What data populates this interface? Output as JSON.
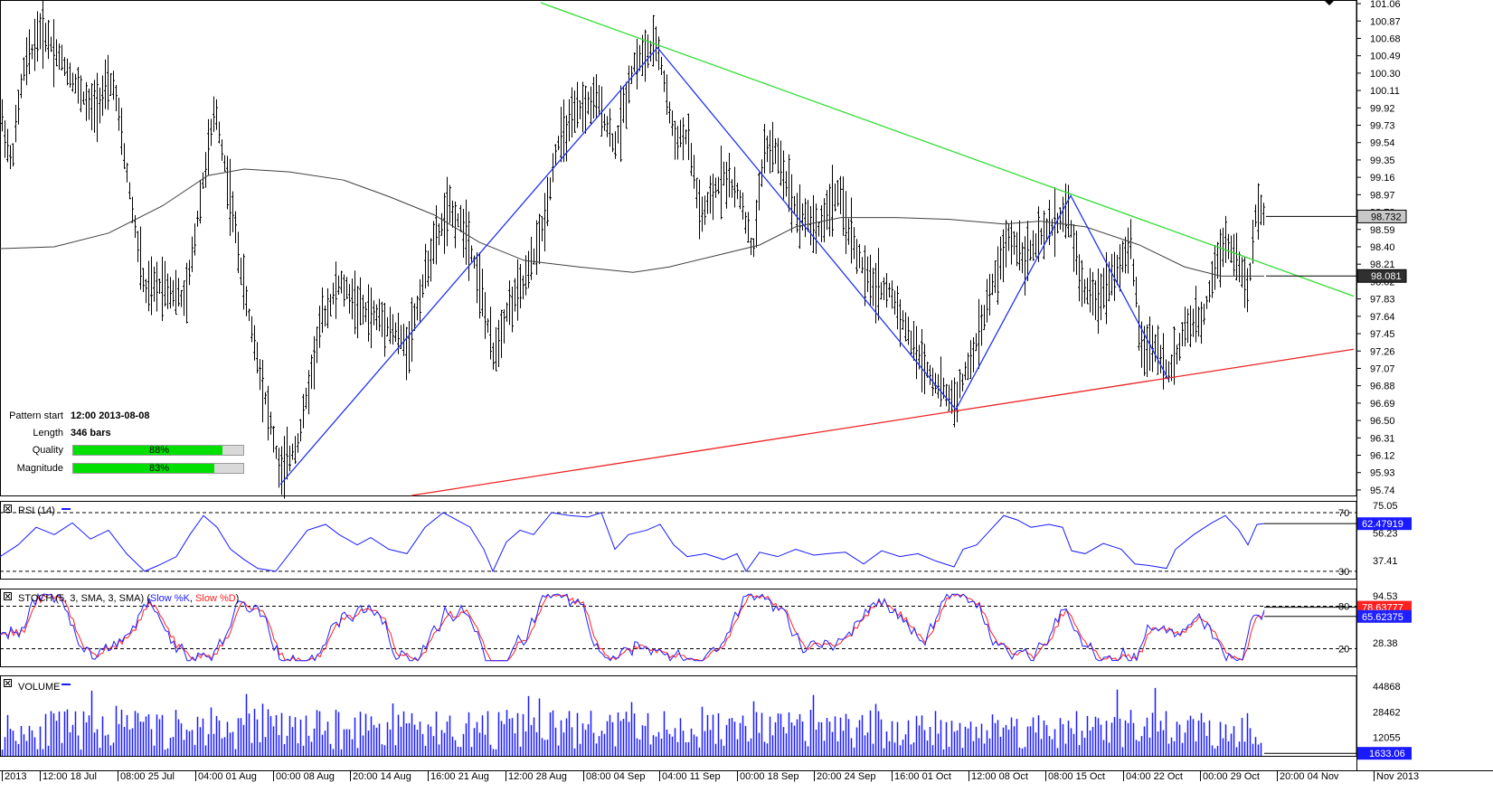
{
  "chart_data": {
    "type": "candlestick",
    "main_pane": {
      "y_ticks": [
        "101.06",
        "100.87",
        "100.68",
        "100.49",
        "100.30",
        "100.11",
        "99.92",
        "99.73",
        "99.54",
        "99.35",
        "99.16",
        "98.97",
        "98.78",
        "98.59",
        "98.40",
        "98.21",
        "98.02",
        "97.83",
        "97.64",
        "97.45",
        "97.26",
        "97.07",
        "96.88",
        "96.69",
        "96.50",
        "96.31",
        "96.12",
        "95.93",
        "95.74"
      ],
      "last_price_label": "98.732",
      "ma_label": "98.081",
      "price_range": [
        95.68,
        101.1
      ],
      "price_path": [
        [
          0,
          99.9
        ],
        [
          12,
          99.3
        ],
        [
          25,
          100.3
        ],
        [
          45,
          100.8
        ],
        [
          70,
          100.4
        ],
        [
          100,
          99.9
        ],
        [
          125,
          100.2
        ],
        [
          140,
          99.2
        ],
        [
          160,
          97.9
        ],
        [
          180,
          98.0
        ],
        [
          205,
          97.8
        ],
        [
          222,
          99.0
        ],
        [
          238,
          99.9
        ],
        [
          255,
          98.9
        ],
        [
          270,
          97.9
        ],
        [
          290,
          96.9
        ],
        [
          310,
          95.9
        ],
        [
          330,
          96.3
        ],
        [
          355,
          97.6
        ],
        [
          375,
          98.0
        ],
        [
          400,
          97.7
        ],
        [
          425,
          97.6
        ],
        [
          450,
          97.3
        ],
        [
          475,
          98.3
        ],
        [
          495,
          98.8
        ],
        [
          515,
          98.6
        ],
        [
          530,
          98.0
        ],
        [
          545,
          97.2
        ],
        [
          560,
          97.7
        ],
        [
          580,
          98.0
        ],
        [
          600,
          98.6
        ],
        [
          615,
          99.5
        ],
        [
          640,
          99.9
        ],
        [
          660,
          100.0
        ],
        [
          680,
          99.5
        ],
        [
          700,
          100.4
        ],
        [
          727,
          100.6
        ],
        [
          745,
          99.6
        ],
        [
          760,
          99.6
        ],
        [
          775,
          98.7
        ],
        [
          800,
          99.2
        ],
        [
          820,
          98.9
        ],
        [
          832,
          98.3
        ],
        [
          845,
          99.5
        ],
        [
          860,
          99.4
        ],
        [
          880,
          98.8
        ],
        [
          905,
          98.6
        ],
        [
          925,
          99.0
        ],
        [
          945,
          98.4
        ],
        [
          960,
          98.0
        ],
        [
          985,
          97.9
        ],
        [
          1010,
          97.3
        ],
        [
          1035,
          96.9
        ],
        [
          1055,
          96.7
        ],
        [
          1075,
          97.2
        ],
        [
          1095,
          97.9
        ],
        [
          1115,
          98.5
        ],
        [
          1135,
          98.3
        ],
        [
          1160,
          98.6
        ],
        [
          1180,
          98.8
        ],
        [
          1195,
          98.0
        ],
        [
          1210,
          97.8
        ],
        [
          1230,
          98.1
        ],
        [
          1250,
          98.4
        ],
        [
          1262,
          97.3
        ],
        [
          1280,
          97.3
        ],
        [
          1292,
          97.0
        ],
        [
          1310,
          97.5
        ],
        [
          1330,
          97.6
        ],
        [
          1340,
          98.1
        ],
        [
          1355,
          98.5
        ],
        [
          1370,
          98.2
        ],
        [
          1380,
          97.9
        ],
        [
          1390,
          98.9
        ],
        [
          1398,
          98.73
        ]
      ],
      "ma_path": [
        [
          0,
          98.38
        ],
        [
          60,
          98.4
        ],
        [
          120,
          98.55
        ],
        [
          180,
          98.85
        ],
        [
          230,
          99.18
        ],
        [
          270,
          99.25
        ],
        [
          320,
          99.22
        ],
        [
          380,
          99.13
        ],
        [
          430,
          98.95
        ],
        [
          480,
          98.75
        ],
        [
          530,
          98.45
        ],
        [
          580,
          98.25
        ],
        [
          640,
          98.18
        ],
        [
          700,
          98.12
        ],
        [
          740,
          98.18
        ],
        [
          790,
          98.3
        ],
        [
          840,
          98.42
        ],
        [
          880,
          98.62
        ],
        [
          930,
          98.72
        ],
        [
          990,
          98.72
        ],
        [
          1050,
          98.7
        ],
        [
          1110,
          98.65
        ],
        [
          1150,
          98.68
        ],
        [
          1200,
          98.62
        ],
        [
          1260,
          98.42
        ],
        [
          1310,
          98.18
        ],
        [
          1350,
          98.08
        ],
        [
          1398,
          98.08
        ]
      ],
      "pattern_lines": {
        "upper_trend": [
          [
            598,
            101.07
          ],
          [
            1497,
            97.86
          ]
        ],
        "lower_trend": [
          [
            455,
            95.68
          ],
          [
            1497,
            97.28
          ]
        ],
        "zigzag": [
          [
            310,
            95.8
          ],
          [
            727,
            100.58
          ],
          [
            1057,
            96.62
          ],
          [
            1184,
            98.96
          ],
          [
            1292,
            96.95
          ]
        ]
      }
    },
    "pattern_info": {
      "start_label": "Pattern start",
      "start_value": "12:00 2013-08-08",
      "length_label": "Length",
      "length_value": "346 bars",
      "quality_label": "Quality",
      "quality_value": "88%",
      "quality_fraction": 0.88,
      "magnitude_label": "Magnitude",
      "magnitude_value": "83%",
      "magnitude_fraction": 0.83
    },
    "rsi_pane": {
      "title": "RSI (14)",
      "levels": [
        "70",
        "30"
      ],
      "y_ticks": [
        "75.05",
        "56.23",
        "37.41"
      ],
      "value_label": "62.47919",
      "series": [
        [
          0,
          40
        ],
        [
          20,
          48
        ],
        [
          40,
          60
        ],
        [
          60,
          55
        ],
        [
          80,
          63
        ],
        [
          100,
          52
        ],
        [
          120,
          58
        ],
        [
          140,
          42
        ],
        [
          160,
          30
        ],
        [
          175,
          34
        ],
        [
          195,
          40
        ],
        [
          210,
          55
        ],
        [
          225,
          68
        ],
        [
          240,
          60
        ],
        [
          255,
          45
        ],
        [
          270,
          38
        ],
        [
          285,
          32
        ],
        [
          305,
          30
        ],
        [
          320,
          42
        ],
        [
          340,
          58
        ],
        [
          360,
          62
        ],
        [
          375,
          55
        ],
        [
          395,
          48
        ],
        [
          410,
          53
        ],
        [
          430,
          45
        ],
        [
          450,
          42
        ],
        [
          470,
          60
        ],
        [
          490,
          70
        ],
        [
          505,
          65
        ],
        [
          520,
          60
        ],
        [
          535,
          45
        ],
        [
          545,
          30
        ],
        [
          560,
          50
        ],
        [
          575,
          58
        ],
        [
          590,
          55
        ],
        [
          610,
          70
        ],
        [
          630,
          68
        ],
        [
          650,
          67
        ],
        [
          665,
          70
        ],
        [
          680,
          45
        ],
        [
          695,
          55
        ],
        [
          715,
          58
        ],
        [
          730,
          62
        ],
        [
          745,
          48
        ],
        [
          760,
          40
        ],
        [
          780,
          42
        ],
        [
          800,
          38
        ],
        [
          815,
          42
        ],
        [
          825,
          30
        ],
        [
          840,
          43
        ],
        [
          860,
          40
        ],
        [
          880,
          45
        ],
        [
          900,
          41
        ],
        [
          915,
          42
        ],
        [
          935,
          43
        ],
        [
          955,
          35
        ],
        [
          975,
          44
        ],
        [
          995,
          40
        ],
        [
          1015,
          42
        ],
        [
          1035,
          37
        ],
        [
          1055,
          33
        ],
        [
          1065,
          45
        ],
        [
          1080,
          48
        ],
        [
          1095,
          58
        ],
        [
          1110,
          68
        ],
        [
          1125,
          65
        ],
        [
          1140,
          60
        ],
        [
          1160,
          62
        ],
        [
          1175,
          60
        ],
        [
          1185,
          44
        ],
        [
          1200,
          42
        ],
        [
          1220,
          49
        ],
        [
          1240,
          45
        ],
        [
          1255,
          35
        ],
        [
          1270,
          34
        ],
        [
          1290,
          32
        ],
        [
          1300,
          45
        ],
        [
          1320,
          55
        ],
        [
          1340,
          63
        ],
        [
          1355,
          68
        ],
        [
          1370,
          58
        ],
        [
          1380,
          48
        ],
        [
          1390,
          62
        ],
        [
          1398,
          62.48
        ]
      ]
    },
    "stoch_pane": {
      "title": "STOCH (5, 3, SMA, 3, SMA)",
      "legend_k": "Slow %K",
      "legend_d": "Slow %D",
      "levels": [
        "80",
        "20"
      ],
      "y_ticks": [
        "94.53",
        "28.38"
      ],
      "value_d_label": "78.63777",
      "value_k_label": "65.62375",
      "colors": {
        "k": "#0000ff",
        "d": "#ff0000"
      }
    },
    "volume_pane": {
      "title": "VOLUME",
      "y_ticks": [
        "44868",
        "28462",
        "12055"
      ],
      "value_label": "1633.06"
    },
    "x_axis": {
      "labels": [
        "2013",
        "12:00 18 Jul",
        "08:00 25 Jul",
        "04:00 01 Aug",
        "00:00 08 Aug",
        "20:00 14 Aug",
        "16:00 21 Aug",
        "12:00 28 Aug",
        "08:00 04 Sep",
        "04:00 11 Sep",
        "00:00 18 Sep",
        "20:00 24 Sep",
        "16:00 01 Oct",
        "12:00 08 Oct",
        "08:00 15 Oct",
        "04:00 22 Oct",
        "00:00 29 Oct",
        "20:00 04 Nov",
        "Nov 2013"
      ]
    }
  }
}
